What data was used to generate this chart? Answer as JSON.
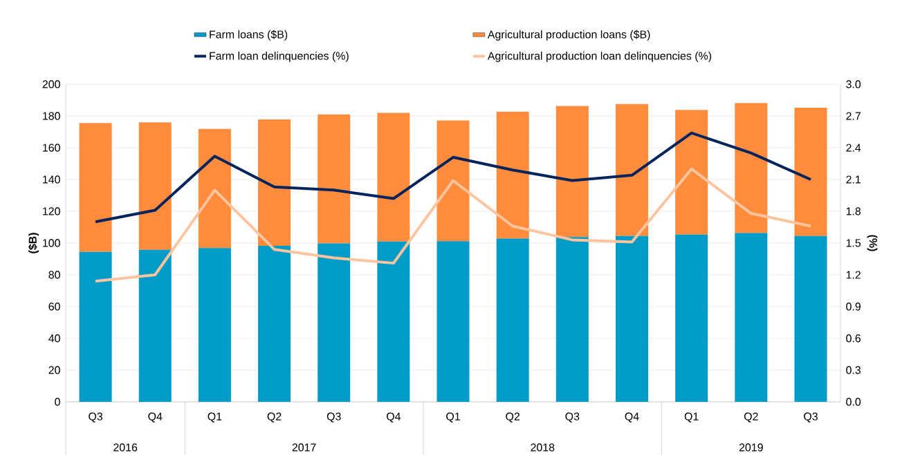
{
  "chart_data": {
    "type": "bar",
    "stacked": true,
    "legend": "top",
    "grid": "y",
    "marker": "none",
    "ylabel": "($B)",
    "y2label": "(%)",
    "categories": [
      "Q3",
      "Q4",
      "Q1",
      "Q2",
      "Q3",
      "Q4",
      "Q1",
      "Q2",
      "Q3",
      "Q4",
      "Q1",
      "Q2",
      "Q3"
    ],
    "series": [
      {
        "name": "Farm loans ($B)",
        "color": "#009bc6",
        "values": [
          94.5,
          95.8,
          96.8,
          98.3,
          99.8,
          101,
          101.2,
          102.8,
          103.8,
          104.5,
          105.3,
          106.3,
          104.5
        ]
      },
      {
        "name": "Agricultural production loans ($B)",
        "color": "#ff8b3d",
        "values": [
          81,
          80.2,
          75,
          79.5,
          81.2,
          81,
          76,
          79.9,
          82.5,
          83,
          78.5,
          81.9,
          80.7
        ]
      },
      {
        "name": "Farm loan delinquencies (%)",
        "type": "line",
        "axis": "y2",
        "color": "#03245c",
        "values": [
          1.7,
          1.81,
          2.32,
          2.03,
          2.0,
          1.92,
          2.31,
          2.19,
          2.09,
          2.14,
          2.54,
          2.35,
          2.1
        ]
      },
      {
        "name": "Agricultural production loan delinquencies (%)",
        "type": "line",
        "axis": "y2",
        "color": "#fdc49e",
        "values": [
          1.14,
          1.2,
          2.0,
          1.44,
          1.36,
          1.31,
          2.09,
          1.66,
          1.53,
          1.51,
          2.2,
          1.78,
          1.66
        ]
      }
    ],
    "ylim": [
      0,
      200
    ],
    "yticks": [
      0,
      20,
      40,
      60,
      80,
      100,
      120,
      140,
      160,
      180,
      200
    ],
    "y2lim": [
      0,
      3
    ],
    "y2ticks": [
      {
        "value": 0,
        "label": "0.0"
      },
      0.3,
      0.6,
      0.9,
      1.2,
      1.5,
      1.8,
      2.1,
      2.4,
      2.7,
      {
        "value": 3,
        "label": "3.0"
      }
    ],
    "annotations": [
      "2016",
      "2017",
      "2018",
      "2019"
    ]
  }
}
